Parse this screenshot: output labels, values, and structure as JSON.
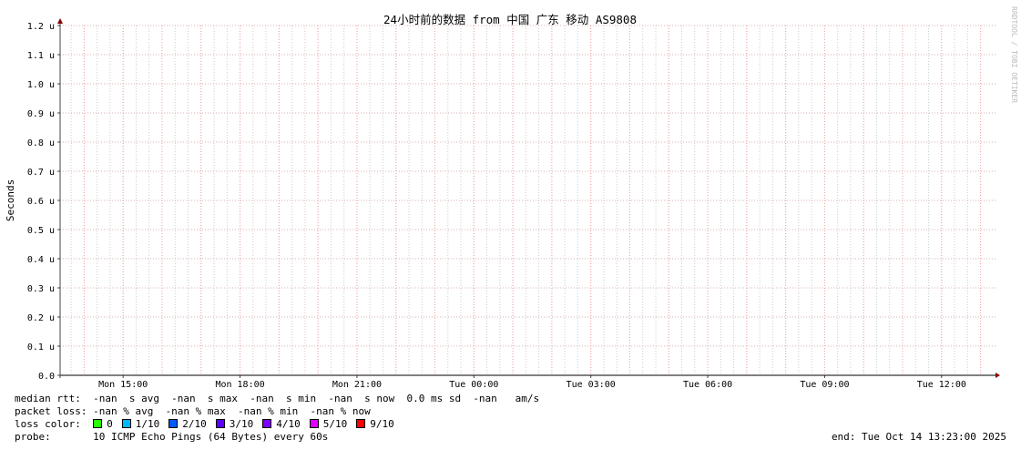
{
  "chart_data": {
    "type": "line",
    "title": "24小时前的数据 from 中国 广东 移动 AS9808",
    "ylabel": "Seconds",
    "xlabel": "",
    "ylim": [
      0,
      1.2
    ],
    "yticks": [
      "0.0",
      "0.1 u",
      "0.2 u",
      "0.3 u",
      "0.4 u",
      "0.5 u",
      "0.6 u",
      "0.7 u",
      "0.8 u",
      "0.9 u",
      "1.0 u",
      "1.1 u",
      "1.2 u"
    ],
    "xlim": [
      "Mon 13:23",
      "Tue 13:23"
    ],
    "xticks": [
      "Mon 15:00",
      "Mon 18:00",
      "Mon 21:00",
      "Tue 00:00",
      "Tue 03:00",
      "Tue 06:00",
      "Tue 09:00",
      "Tue 12:00"
    ],
    "grid": true,
    "series": [],
    "watermark": "RRDTOOL / TOBI OETIKER"
  },
  "legend": {
    "median_rtt": "median rtt:  -nan  s avg  -nan  s max  -nan  s min  -nan  s now  0.0 ms sd  -nan   am/s",
    "packet_loss": "packet loss: -nan % avg  -nan % max  -nan % min  -nan % now",
    "loss_label": "loss color:",
    "loss_colors": [
      {
        "label": "0",
        "color": "#26ff00"
      },
      {
        "label": "1/10",
        "color": "#00b8ff"
      },
      {
        "label": "2/10",
        "color": "#0059ff"
      },
      {
        "label": "3/10",
        "color": "#5e00ff"
      },
      {
        "label": "4/10",
        "color": "#7e00ff"
      },
      {
        "label": "5/10",
        "color": "#dd00ff"
      },
      {
        "label": "9/10",
        "color": "#ff0000"
      }
    ],
    "probe": "probe:       10 ICMP Echo Pings (64 Bytes) every 60s",
    "end": "end: Tue Oct 14 13:23:00 2025"
  }
}
